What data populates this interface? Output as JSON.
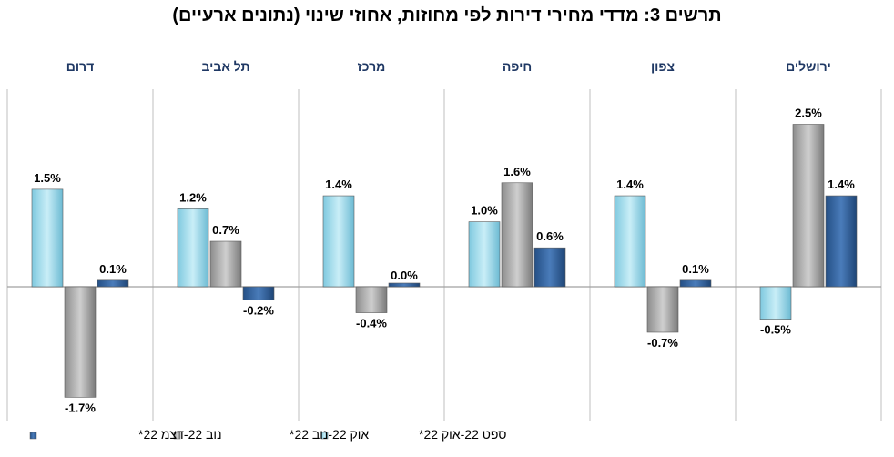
{
  "title": "תרשים 3: מדדי מחירי דירות לפי מחוזות, אחוזי שינוי (נתונים ארעיים)",
  "colors": {
    "s1": "#9fdcec",
    "s2": "#a6a6a6",
    "s3": "#2f5f9a",
    "region": "#1f3864",
    "grid": "#bfbfbf"
  },
  "chart_data": {
    "type": "bar",
    "title": "תרשים 3: מדדי מחירי דירות לפי מחוזות, אחוזי שינוי (נתונים ארעיים)",
    "categories": [
      "דרום",
      "תל אביב",
      "מרכז",
      "חיפה",
      "צפון",
      "ירושלים"
    ],
    "series": [
      {
        "name": "ספט 22-אוק 22*",
        "values": [
          1.5,
          1.2,
          1.4,
          1.0,
          1.4,
          -0.5
        ],
        "labels": [
          "1.5%",
          "1.2%",
          "1.4%",
          "1.0%",
          "1.4%",
          "-0.5%"
        ]
      },
      {
        "name": "אוק 22-נוב 22*",
        "values": [
          -1.7,
          0.7,
          -0.4,
          1.6,
          -0.7,
          2.5
        ],
        "labels": [
          "-1.7%",
          "0.7%",
          "-0.4%",
          "1.6%",
          "-0.7%",
          "2.5%"
        ]
      },
      {
        "name": "נוב 22-דצמ 22*",
        "values": [
          0.1,
          -0.2,
          0.0,
          0.6,
          0.1,
          1.4
        ],
        "labels": [
          "0.1%",
          "-0.2%",
          "0.0%",
          "0.6%",
          "0.1%",
          "1.4%"
        ]
      }
    ],
    "ylim": [
      -1.9,
      2.9
    ],
    "grid": false,
    "legend": "bottom"
  }
}
